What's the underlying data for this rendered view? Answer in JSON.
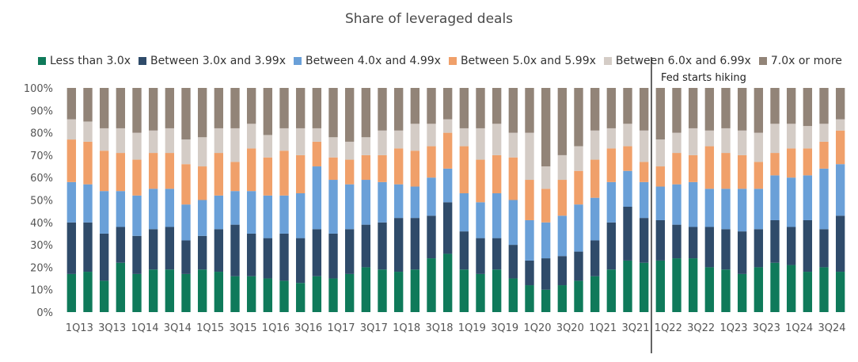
{
  "chart_data": {
    "type": "bar",
    "stacked": true,
    "title": "Share of leveraged deals",
    "xlabel": "",
    "ylabel": "",
    "ylim": [
      0,
      100
    ],
    "ytick_format": "percent",
    "yticks": [
      "0%",
      "10%",
      "20%",
      "30%",
      "40%",
      "50%",
      "60%",
      "70%",
      "80%",
      "90%",
      "100%"
    ],
    "categories": [
      "1Q13",
      "2Q13",
      "3Q13",
      "4Q13",
      "1Q14",
      "2Q14",
      "3Q14",
      "4Q14",
      "1Q15",
      "2Q15",
      "3Q15",
      "4Q15",
      "1Q16",
      "2Q16",
      "3Q16",
      "4Q16",
      "1Q17",
      "2Q17",
      "3Q17",
      "4Q17",
      "1Q18",
      "2Q18",
      "3Q18",
      "4Q18",
      "1Q19",
      "2Q19",
      "3Q19",
      "4Q19",
      "1Q20",
      "2Q20",
      "3Q20",
      "4Q20",
      "1Q21",
      "2Q21",
      "3Q21",
      "4Q21",
      "1Q22",
      "2Q22",
      "3Q22",
      "4Q22",
      "1Q23",
      "2Q23",
      "3Q23",
      "4Q23",
      "1Q24",
      "2Q24",
      "3Q24",
      "4Q24"
    ],
    "x_tick_labels": [
      "1Q13",
      "3Q13",
      "1Q14",
      "3Q14",
      "1Q15",
      "3Q15",
      "1Q16",
      "3Q16",
      "1Q17",
      "3Q17",
      "1Q18",
      "3Q18",
      "1Q19",
      "3Q19",
      "1Q20",
      "3Q20",
      "1Q21",
      "3Q21",
      "1Q22",
      "3Q22",
      "1Q23",
      "3Q23",
      "1Q24",
      "3Q24"
    ],
    "legend_position": "top",
    "series": [
      {
        "name": "Less than 3.0x",
        "color": "#0f7a5a",
        "values": [
          17,
          18,
          14,
          22,
          17,
          19,
          19,
          17,
          19,
          18,
          16,
          16,
          15,
          14,
          13,
          16,
          15,
          17,
          20,
          19,
          18,
          19,
          24,
          26,
          19,
          17,
          19,
          15,
          12,
          10,
          12,
          14,
          16,
          19,
          23,
          22,
          23,
          24,
          24,
          20,
          19,
          17,
          20,
          22,
          21,
          18,
          20,
          18
        ]
      },
      {
        "name": "Between 3.0x and 3.99x",
        "color": "#2f4b6a",
        "values": [
          23,
          22,
          21,
          16,
          17,
          18,
          19,
          15,
          15,
          19,
          23,
          19,
          18,
          21,
          20,
          21,
          20,
          20,
          19,
          21,
          24,
          23,
          19,
          23,
          17,
          16,
          14,
          15,
          11,
          14,
          13,
          13,
          16,
          21,
          24,
          20,
          18,
          15,
          14,
          18,
          18,
          19,
          17,
          19,
          17,
          23,
          17,
          25
        ]
      },
      {
        "name": "Between 4.0x and 4.99x",
        "color": "#6aa0d8",
        "values": [
          18,
          17,
          19,
          16,
          18,
          18,
          17,
          16,
          16,
          15,
          15,
          19,
          19,
          17,
          20,
          28,
          24,
          20,
          20,
          18,
          15,
          14,
          17,
          15,
          17,
          16,
          20,
          20,
          18,
          16,
          18,
          21,
          19,
          18,
          16,
          16,
          15,
          18,
          20,
          17,
          18,
          19,
          18,
          20,
          22,
          20,
          27,
          23
        ]
      },
      {
        "name": "Between 5.0x and 5.99x",
        "color": "#f0a06a",
        "values": [
          19,
          19,
          18,
          17,
          16,
          16,
          16,
          18,
          15,
          19,
          13,
          19,
          17,
          20,
          17,
          11,
          10,
          11,
          11,
          12,
          16,
          16,
          14,
          16,
          21,
          19,
          17,
          19,
          18,
          15,
          16,
          15,
          17,
          15,
          11,
          9,
          9,
          14,
          12,
          19,
          16,
          15,
          12,
          10,
          13,
          12,
          12,
          15
        ]
      },
      {
        "name": "Between 6.0x and 6.99x",
        "color": "#d4ccc6",
        "values": [
          9,
          9,
          10,
          11,
          12,
          10,
          11,
          11,
          13,
          11,
          15,
          11,
          10,
          10,
          12,
          6,
          9,
          8,
          8,
          11,
          8,
          12,
          10,
          6,
          8,
          14,
          14,
          11,
          21,
          10,
          11,
          11,
          13,
          9,
          10,
          14,
          12,
          9,
          12,
          7,
          11,
          11,
          13,
          13,
          11,
          10,
          8,
          5
        ]
      },
      {
        "name": "7.0x or more",
        "color": "#928478",
        "values": [
          14,
          15,
          18,
          18,
          20,
          19,
          18,
          23,
          22,
          18,
          18,
          16,
          21,
          18,
          18,
          18,
          22,
          24,
          22,
          19,
          19,
          16,
          16,
          14,
          18,
          18,
          16,
          20,
          20,
          35,
          30,
          26,
          19,
          18,
          16,
          19,
          23,
          20,
          18,
          19,
          18,
          19,
          20,
          16,
          16,
          17,
          16,
          14
        ]
      }
    ],
    "annotations": [
      {
        "text": "Fed starts hiking",
        "at_category": "1Q22",
        "style": "vertical-line"
      }
    ]
  }
}
